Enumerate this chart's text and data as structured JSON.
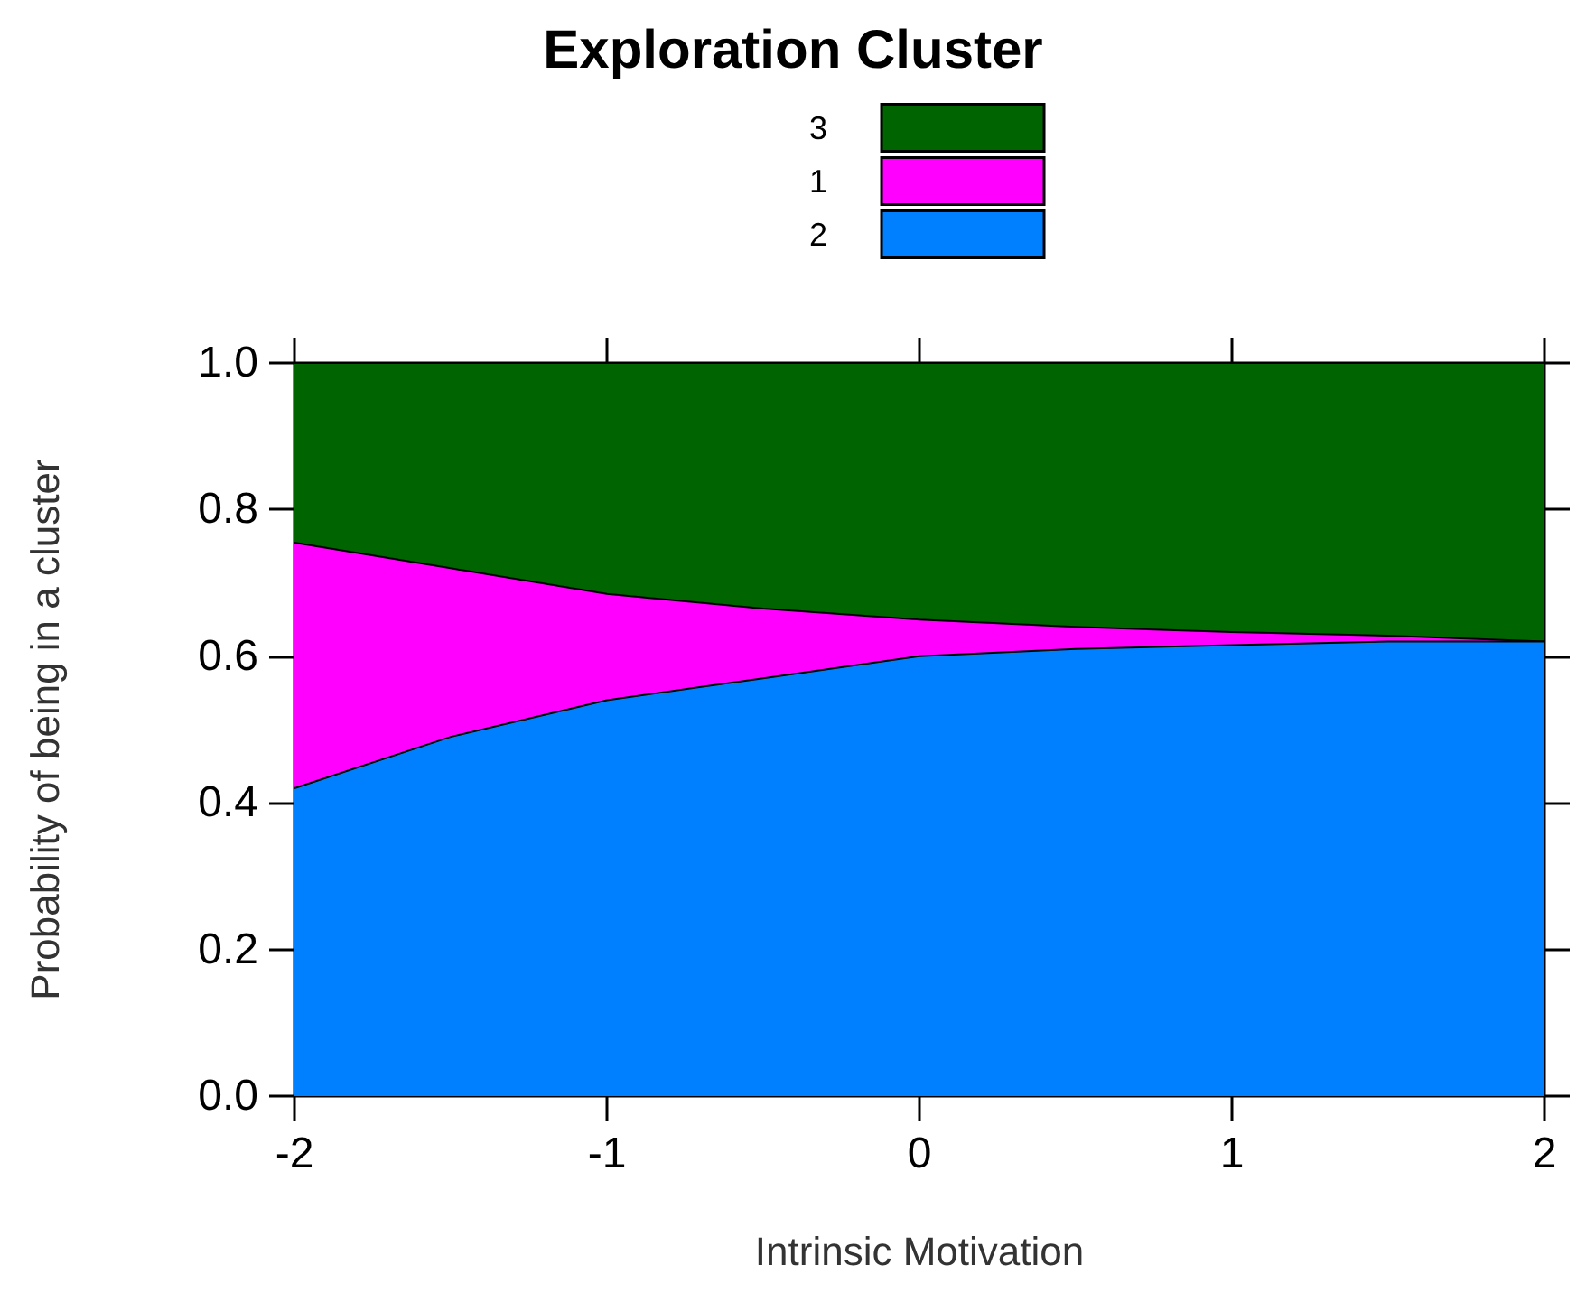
{
  "chart_data": {
    "type": "area",
    "title": "Exploration Cluster",
    "xlabel": "Intrinsic Motivation",
    "ylabel": "Probability of being in a cluster",
    "x": [
      -2,
      -1.5,
      -1,
      -0.5,
      0,
      0.5,
      1,
      1.5,
      2
    ],
    "series": [
      {
        "name": "2",
        "color": "#0080ff",
        "values": [
          0.42,
          0.49,
          0.54,
          0.57,
          0.6,
          0.61,
          0.615,
          0.62,
          0.62
        ]
      },
      {
        "name": "1",
        "color": "#ff00ff",
        "values": [
          0.335,
          0.23,
          0.145,
          0.095,
          0.05,
          0.03,
          0.018,
          0.008,
          0
        ]
      },
      {
        "name": "3",
        "color": "#006400",
        "values": [
          0.245,
          0.28,
          0.315,
          0.335,
          0.35,
          0.36,
          0.367,
          0.372,
          0.38
        ]
      }
    ],
    "stacked": true,
    "marker": "none",
    "legend": "top",
    "xlim": [
      -2,
      2
    ],
    "xticks": [
      -2,
      -1,
      0,
      1,
      2
    ],
    "ylim": [
      0,
      1
    ],
    "yticks": [
      {
        "value": 0,
        "label": "0.0"
      },
      0.2,
      0.4,
      0.6,
      0.8,
      {
        "value": 1,
        "label": "1.0"
      }
    ]
  }
}
